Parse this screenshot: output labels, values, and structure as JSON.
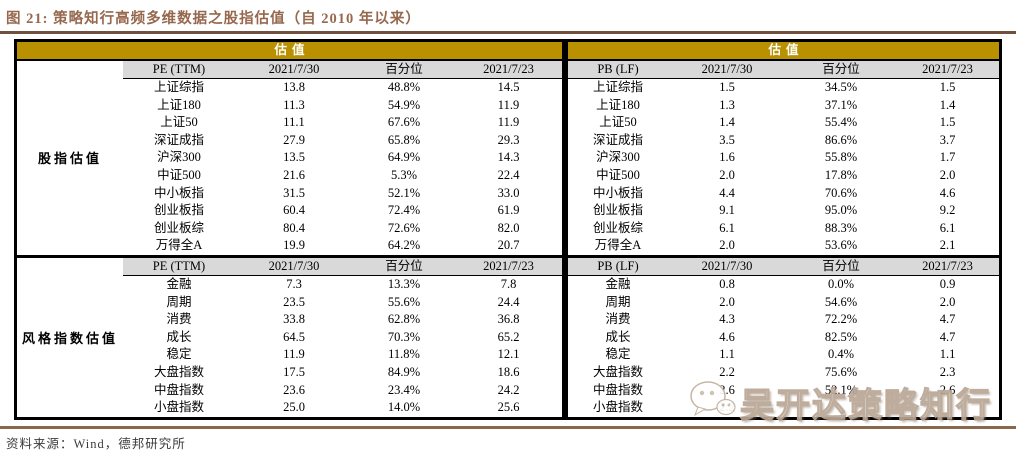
{
  "title": "图 21: 策略知行高频多维数据之股指估值（自 2010 年以来）",
  "footer": {
    "source": "资料来源：Wind，德邦研究所"
  },
  "watermark": {
    "text": "吴开达策略知行",
    "icon": "wechat-icon"
  },
  "colors": {
    "band-gold": "#B89000",
    "header-gray": "#D9D9D9",
    "title-brown": "#96684E",
    "rule-dark": "#6F513E",
    "rule-brown": "#8B684C",
    "border-black": "#000000"
  },
  "tables": [
    {
      "side": "left",
      "band_label": "估值",
      "sections": [
        {
          "section_label": "股指估值",
          "header": [
            "PE (TTM)",
            "2021/7/30",
            "百分位",
            "2021/7/23"
          ],
          "rows": [
            [
              "上证综指",
              "13.8",
              "48.8%",
              "14.5"
            ],
            [
              "上证180",
              "11.3",
              "54.9%",
              "11.9"
            ],
            [
              "上证50",
              "11.1",
              "67.6%",
              "11.9"
            ],
            [
              "深证成指",
              "27.9",
              "65.8%",
              "29.3"
            ],
            [
              "沪深300",
              "13.5",
              "64.9%",
              "14.3"
            ],
            [
              "中证500",
              "21.6",
              "5.3%",
              "22.4"
            ],
            [
              "中小板指",
              "31.5",
              "52.1%",
              "33.0"
            ],
            [
              "创业板指",
              "60.4",
              "72.4%",
              "61.9"
            ],
            [
              "创业板综",
              "80.4",
              "72.6%",
              "82.0"
            ],
            [
              "万得全A",
              "19.9",
              "64.2%",
              "20.7"
            ]
          ]
        },
        {
          "section_label": "风格指数估值",
          "header": [
            "PE (TTM)",
            "2021/7/30",
            "百分位",
            "2021/7/23"
          ],
          "rows": [
            [
              "金融",
              "7.3",
              "13.3%",
              "7.8"
            ],
            [
              "周期",
              "23.5",
              "55.6%",
              "24.4"
            ],
            [
              "消费",
              "33.8",
              "62.8%",
              "36.8"
            ],
            [
              "成长",
              "64.5",
              "70.3%",
              "65.2"
            ],
            [
              "稳定",
              "11.9",
              "11.8%",
              "12.1"
            ],
            [
              "大盘指数",
              "17.5",
              "84.9%",
              "18.6"
            ],
            [
              "中盘指数",
              "23.6",
              "23.4%",
              "24.2"
            ],
            [
              "小盘指数",
              "25.0",
              "14.0%",
              "25.6"
            ]
          ]
        }
      ]
    },
    {
      "side": "right",
      "band_label": "估值",
      "sections": [
        {
          "section_label": "",
          "header": [
            "PB (LF)",
            "2021/7/30",
            "百分位",
            "2021/7/23"
          ],
          "rows": [
            [
              "上证综指",
              "1.5",
              "34.5%",
              "1.5"
            ],
            [
              "上证180",
              "1.3",
              "37.1%",
              "1.4"
            ],
            [
              "上证50",
              "1.4",
              "55.4%",
              "1.5"
            ],
            [
              "深证成指",
              "3.5",
              "86.6%",
              "3.7"
            ],
            [
              "沪深300",
              "1.6",
              "55.8%",
              "1.7"
            ],
            [
              "中证500",
              "2.0",
              "17.8%",
              "2.0"
            ],
            [
              "中小板指",
              "4.4",
              "70.6%",
              "4.6"
            ],
            [
              "创业板指",
              "9.1",
              "95.0%",
              "9.2"
            ],
            [
              "创业板综",
              "6.1",
              "88.3%",
              "6.1"
            ],
            [
              "万得全A",
              "2.0",
              "53.6%",
              "2.1"
            ]
          ]
        },
        {
          "section_label": "",
          "header": [
            "PB (LF)",
            "2021/7/30",
            "百分位",
            "2021/7/23"
          ],
          "rows": [
            [
              "金融",
              "0.8",
              "0.0%",
              "0.9"
            ],
            [
              "周期",
              "2.0",
              "54.6%",
              "2.0"
            ],
            [
              "消费",
              "4.3",
              "72.2%",
              "4.7"
            ],
            [
              "成长",
              "4.6",
              "82.5%",
              "4.7"
            ],
            [
              "稳定",
              "1.1",
              "0.4%",
              "1.1"
            ],
            [
              "大盘指数",
              "2.2",
              "75.6%",
              "2.3"
            ],
            [
              "中盘指数",
              "2.6",
              "52.1%",
              "2.6"
            ],
            [
              "小盘指数",
              "2.2",
              "",
              ""
            ]
          ]
        }
      ]
    }
  ]
}
